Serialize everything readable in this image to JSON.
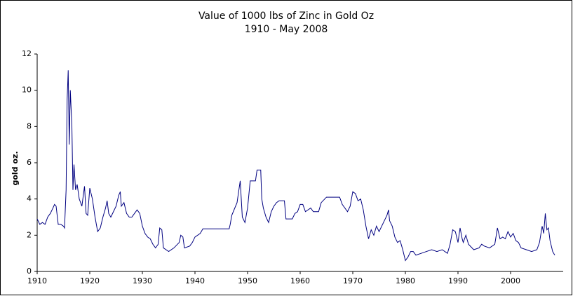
{
  "chart_data": {
    "type": "line",
    "title": "Value of 1000 lbs of Zinc in Gold Oz",
    "subtitle": "1910 - May 2008",
    "y_label": "gold oz.",
    "xlim": [
      1910,
      2010
    ],
    "xticks": [
      1910,
      1920,
      1930,
      1940,
      1950,
      1960,
      1970,
      1980,
      1990,
      2000
    ],
    "ylim": [
      0,
      12
    ],
    "yticks": [
      0,
      2,
      4,
      6,
      8,
      10,
      12
    ],
    "grid": false,
    "series": [
      {
        "color": "#000080",
        "x": [
          1910,
          1910.5,
          1911,
          1911.5,
          1912,
          1912.5,
          1913,
          1913.3,
          1913.6,
          1914,
          1914.5,
          1915,
          1915.2,
          1915.5,
          1915.7,
          1915.9,
          1916.1,
          1916.3,
          1916.6,
          1916.8,
          1917,
          1917.3,
          1917.6,
          1918,
          1918.5,
          1919,
          1919.3,
          1919.6,
          1920,
          1920.5,
          1921,
          1921.5,
          1922,
          1922.5,
          1923,
          1923.3,
          1923.6,
          1924,
          1924.5,
          1925,
          1925.5,
          1925.8,
          1926,
          1926.5,
          1927,
          1927.5,
          1928,
          1928.5,
          1929,
          1929.5,
          1930,
          1930.5,
          1931,
          1931.5,
          1932,
          1932.5,
          1933,
          1933.3,
          1933.7,
          1934,
          1935,
          1936,
          1937,
          1937.3,
          1937.7,
          1938,
          1939,
          1939.5,
          1940,
          1941,
          1941.5,
          1946.5,
          1946.7,
          1947,
          1948,
          1948.6,
          1949,
          1949.5,
          1950,
          1950.5,
          1951.5,
          1951.8,
          1952.5,
          1952.7,
          1953,
          1953.5,
          1954,
          1954.5,
          1955,
          1955.5,
          1956,
          1957,
          1957.3,
          1958.5,
          1959,
          1959.5,
          1960,
          1960.5,
          1961,
          1962,
          1962.5,
          1963.5,
          1964,
          1965,
          1967.5,
          1968,
          1969,
          1969.5,
          1970,
          1970.5,
          1971,
          1971.5,
          1972,
          1972.5,
          1973,
          1973.5,
          1974,
          1974.5,
          1975,
          1976,
          1976.5,
          1976.8,
          1977,
          1977.5,
          1978,
          1978.5,
          1979,
          1979.5,
          1980,
          1980.5,
          1981,
          1981.5,
          1982,
          1983,
          1984,
          1985,
          1986,
          1987,
          1988,
          1988.5,
          1989,
          1989.5,
          1990,
          1990.4,
          1990.8,
          1991,
          1991.5,
          1992,
          1993,
          1994,
          1994.5,
          1995,
          1996,
          1997,
          1997.5,
          1998,
          1998.5,
          1999,
          1999.5,
          2000,
          2000.5,
          2001,
          2001.5,
          2002,
          2003,
          2004,
          2005,
          2005.5,
          2006,
          2006.3,
          2006.6,
          2006.9,
          2007.2,
          2007.5,
          2008,
          2008.4
        ],
        "values": [
          2.9,
          2.6,
          2.7,
          2.6,
          3.0,
          3.2,
          3.5,
          3.7,
          3.6,
          2.6,
          2.6,
          2.5,
          2.4,
          4.5,
          9.5,
          11.1,
          7.0,
          10.0,
          8.0,
          4.5,
          5.9,
          4.5,
          4.8,
          4.0,
          3.6,
          4.7,
          3.2,
          3.1,
          4.6,
          4.0,
          3.0,
          2.2,
          2.4,
          3.0,
          3.5,
          3.9,
          3.2,
          3.0,
          3.3,
          3.6,
          4.2,
          4.4,
          3.6,
          3.8,
          3.2,
          3.0,
          3.0,
          3.2,
          3.4,
          3.2,
          2.5,
          2.1,
          1.9,
          1.8,
          1.5,
          1.3,
          1.5,
          2.4,
          2.3,
          1.3,
          1.1,
          1.3,
          1.6,
          2.0,
          1.9,
          1.3,
          1.4,
          1.6,
          1.9,
          2.1,
          2.35,
          2.35,
          2.6,
          3.1,
          3.8,
          5.0,
          3.0,
          2.7,
          3.5,
          5.0,
          5.0,
          5.6,
          5.6,
          4.0,
          3.5,
          3.0,
          2.7,
          3.3,
          3.6,
          3.8,
          3.9,
          3.9,
          2.9,
          2.9,
          3.2,
          3.3,
          3.7,
          3.7,
          3.3,
          3.5,
          3.3,
          3.3,
          3.8,
          4.1,
          4.1,
          3.7,
          3.3,
          3.6,
          4.4,
          4.3,
          3.9,
          4.0,
          3.4,
          2.5,
          1.8,
          2.3,
          2.0,
          2.5,
          2.2,
          2.8,
          3.1,
          3.4,
          2.8,
          2.5,
          1.9,
          1.6,
          1.7,
          1.2,
          0.6,
          0.8,
          1.1,
          1.1,
          0.9,
          1.0,
          1.1,
          1.2,
          1.1,
          1.2,
          1.0,
          1.5,
          2.3,
          2.2,
          1.6,
          2.4,
          1.8,
          1.6,
          2.0,
          1.5,
          1.2,
          1.3,
          1.5,
          1.4,
          1.3,
          1.5,
          2.4,
          1.8,
          1.9,
          1.8,
          2.2,
          1.9,
          2.1,
          1.7,
          1.6,
          1.3,
          1.2,
          1.1,
          1.2,
          1.6,
          2.5,
          2.1,
          3.2,
          2.3,
          2.4,
          1.7,
          1.1,
          0.9
        ]
      }
    ]
  }
}
